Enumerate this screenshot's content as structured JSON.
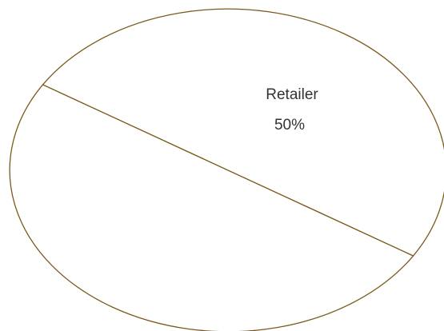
{
  "chart_data": {
    "type": "pie",
    "slices": [
      {
        "label": "Retailer",
        "value": 50,
        "value_label": "50%"
      },
      {
        "label": "",
        "value": 50,
        "value_label": ""
      }
    ],
    "stroke_color": "#7a5a1e",
    "fill_color": "#ffffff",
    "label_color": "#333333",
    "legend": "none"
  }
}
